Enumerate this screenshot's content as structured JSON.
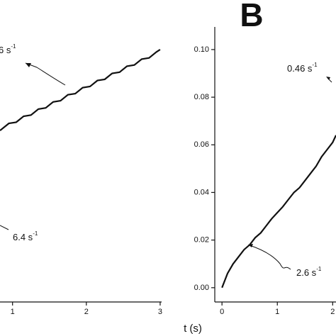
{
  "panel_label": "B",
  "x_label": "t (s)",
  "chart_data": [
    {
      "type": "line",
      "color": "#111111",
      "x": [
        0.83,
        0.95,
        1.05,
        1.15,
        1.25,
        1.35,
        1.45,
        1.55,
        1.65,
        1.75,
        1.85,
        1.95,
        2.05,
        2.15,
        2.25,
        2.35,
        2.45,
        2.55,
        2.65,
        2.75,
        2.85,
        2.95,
        3.0
      ],
      "values": [
        0.066,
        0.069,
        0.0695,
        0.072,
        0.0725,
        0.075,
        0.0755,
        0.078,
        0.0785,
        0.081,
        0.0815,
        0.084,
        0.0845,
        0.087,
        0.0875,
        0.09,
        0.0905,
        0.093,
        0.0935,
        0.096,
        0.0965,
        0.099,
        0.1
      ],
      "xlim": [
        0.83,
        3.02
      ],
      "ylim": [
        -0.006,
        0.1095
      ],
      "xticks": [
        1,
        2,
        3
      ],
      "annotations": [
        {
          "text": "6 s",
          "sup": "-1"
        },
        {
          "text": "6.4 s",
          "sup": "-1"
        }
      ]
    },
    {
      "type": "line",
      "color": "#111111",
      "x": [
        0,
        0.1,
        0.2,
        0.3,
        0.4,
        0.5,
        0.6,
        0.7,
        0.8,
        0.9,
        1.0,
        1.1,
        1.2,
        1.3,
        1.4,
        1.5,
        1.6,
        1.7,
        1.8,
        1.9,
        2.0,
        2.06
      ],
      "values": [
        0.0,
        0.006,
        0.01,
        0.013,
        0.016,
        0.018,
        0.021,
        0.023,
        0.026,
        0.029,
        0.0315,
        0.034,
        0.037,
        0.04,
        0.042,
        0.045,
        0.048,
        0.051,
        0.055,
        0.058,
        0.061,
        0.064
      ],
      "xlim": [
        -0.13,
        2.06
      ],
      "ylim": [
        -0.006,
        0.1095
      ],
      "xticks": [
        0,
        1,
        2
      ],
      "yticks": [
        {
          "value": 0,
          "label": "0.00"
        },
        {
          "value": 0.02,
          "label": "0.02"
        },
        {
          "value": 0.04,
          "label": "0.04"
        },
        {
          "value": 0.06,
          "label": "0.06"
        },
        {
          "value": 0.08,
          "label": "0.08"
        },
        {
          "value": 0.1,
          "label": "0.10"
        }
      ],
      "annotations": [
        {
          "text": "0.46 s",
          "sup": "-1"
        },
        {
          "text": "2.6 s",
          "sup": "-1"
        }
      ]
    }
  ]
}
